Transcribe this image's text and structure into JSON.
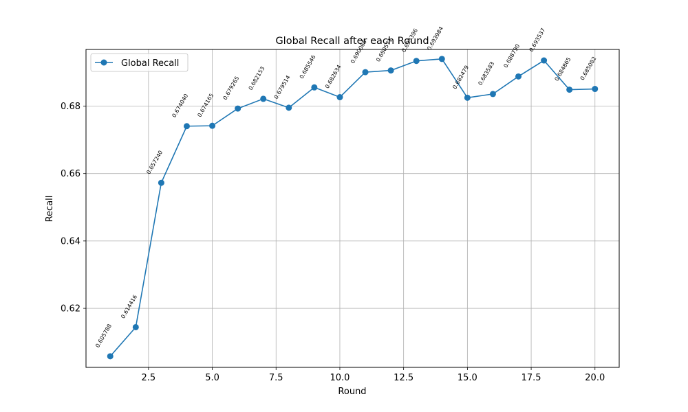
{
  "chart_data": {
    "type": "line",
    "title": "Global Recall after each Round",
    "xlabel": "Round",
    "ylabel": "Recall",
    "xlim": [
      0.05,
      20.95
    ],
    "ylim": [
      0.6025,
      0.6968
    ],
    "xticks": [
      2.5,
      5.0,
      7.5,
      10.0,
      12.5,
      15.0,
      17.5,
      20.0
    ],
    "xtick_labels": [
      "2.5",
      "5.0",
      "7.5",
      "10.0",
      "12.5",
      "15.0",
      "17.5",
      "20.0"
    ],
    "yticks": [
      0.62,
      0.64,
      0.66,
      0.68
    ],
    "ytick_labels": [
      "0.62",
      "0.64",
      "0.66",
      "0.68"
    ],
    "grid": true,
    "legend_position": "top-left",
    "color": "#1f77b4",
    "series": [
      {
        "name": "Global Recall",
        "x": [
          1,
          2,
          3,
          4,
          5,
          6,
          7,
          8,
          9,
          10,
          11,
          12,
          13,
          14,
          15,
          16,
          17,
          18,
          19,
          20
        ],
        "y": [
          0.605788,
          0.614416,
          0.65724,
          0.67404,
          0.674165,
          0.679265,
          0.682153,
          0.679514,
          0.685546,
          0.682634,
          0.690065,
          0.690571,
          0.693396,
          0.693984,
          0.682479,
          0.683583,
          0.68879,
          0.693537,
          0.684865,
          0.685082
        ],
        "labels": [
          "0.605788",
          "0.614416",
          "0.657240",
          "0.674040",
          "0.674165",
          "0.679265",
          "0.682153",
          "0.679514",
          "0.685546",
          "0.682634",
          "0.690065",
          "0.690571",
          "0.693396",
          "0.693984",
          "0.682479",
          "0.683583",
          "0.688790",
          "0.693537",
          "0.684865",
          "0.685082"
        ]
      }
    ]
  }
}
